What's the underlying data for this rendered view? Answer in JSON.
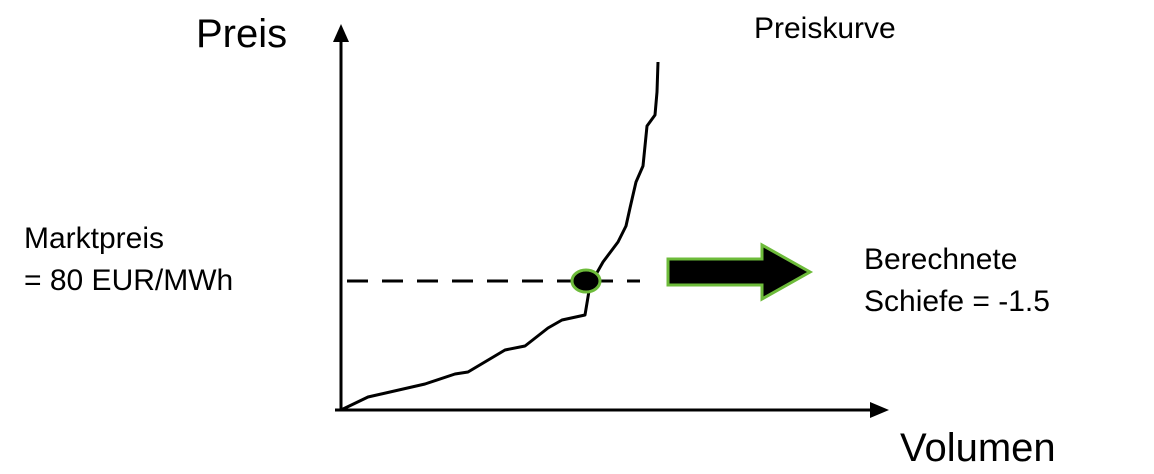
{
  "axes": {
    "y_label": "Preis",
    "x_label": "Volumen"
  },
  "curve": {
    "label": "Preiskurve"
  },
  "market_price": {
    "line1": "Marktpreis",
    "line2": "= 80 EUR/MWh"
  },
  "result": {
    "line1": "Berechnete",
    "line2": "Schiefe = -1.5"
  },
  "colors": {
    "line": "#000000",
    "marker_fill": "#000000",
    "marker_outline": "#6DBB3A",
    "arrow_fill": "#000000",
    "arrow_outline": "#6DBB3A"
  }
}
